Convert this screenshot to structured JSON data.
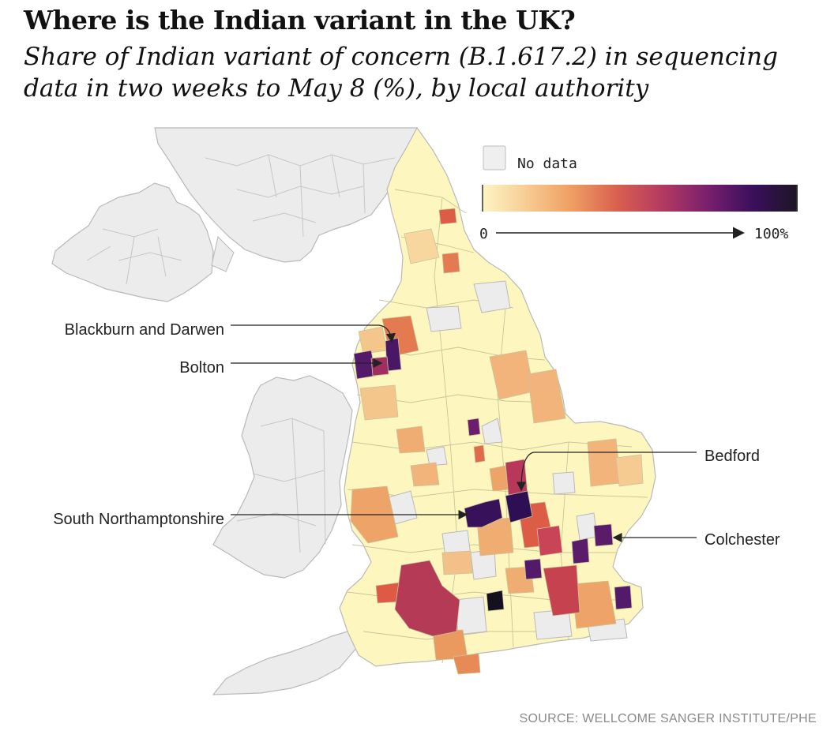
{
  "header": {
    "title": "Where is the Indian variant in the UK?",
    "subtitle": "Share of Indian variant of concern (B.1.617.2) in sequencing data in two weeks to May 8 (%), by local authority"
  },
  "legend": {
    "no_data_label": "No data",
    "scale_min_label": "0",
    "scale_max_label": "100%",
    "scale_min_value": 0,
    "scale_max_value": 100,
    "color_stops": [
      "#fdf6c5",
      "#f7cc93",
      "#ee9e62",
      "#d9604f",
      "#b33a60",
      "#7a1f6d",
      "#3a0f5c",
      "#1c1624"
    ],
    "no_data_color": "#efefef"
  },
  "map": {
    "no_data_fill": "#ececec",
    "border_color": "#b9b9b9",
    "england_base_fill": "#fdf7bf"
  },
  "callouts": [
    {
      "id": "blackburn",
      "label": "Blackburn and Darwen"
    },
    {
      "id": "bolton",
      "label": "Bolton"
    },
    {
      "id": "bedford",
      "label": "Bedford"
    },
    {
      "id": "south-northamptonshire",
      "label": "South Northamptonshire"
    },
    {
      "id": "colchester",
      "label": "Colchester"
    }
  ],
  "source": "SOURCE: WELLCOME SANGER INSTITUTE/PHE"
}
